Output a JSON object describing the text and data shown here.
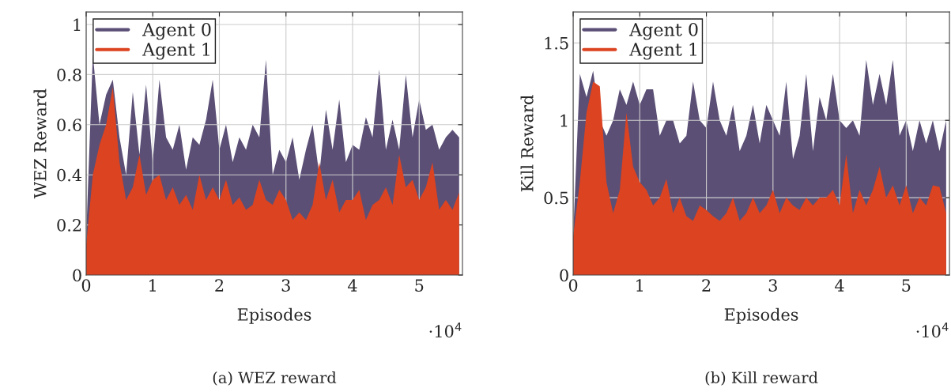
{
  "chart_data": [
    {
      "type": "area",
      "title": "(a) WEZ reward",
      "xlabel": "Episodes",
      "ylabel": "WEZ Reward",
      "annotations": [
        "·10$^{4}$"
      ],
      "x": [
        0,
        0.1,
        0.2,
        0.3,
        0.4,
        0.5,
        0.6,
        0.7,
        0.8,
        0.9,
        1.0,
        1.1,
        1.2,
        1.3,
        1.4,
        1.5,
        1.6,
        1.7,
        1.8,
        1.9,
        2.0,
        2.1,
        2.2,
        2.3,
        2.4,
        2.5,
        2.6,
        2.7,
        2.8,
        2.9,
        3.0,
        3.1,
        3.2,
        3.3,
        3.4,
        3.5,
        3.6,
        3.7,
        3.8,
        3.9,
        4.0,
        4.1,
        4.2,
        4.3,
        4.4,
        4.5,
        4.6,
        4.7,
        4.8,
        4.9,
        5.0,
        5.1,
        5.2,
        5.3,
        5.4,
        5.5,
        5.6
      ],
      "xlim": [
        0,
        5.65
      ],
      "xticks": [
        0,
        1,
        2,
        3,
        4,
        5
      ],
      "ylim": [
        0,
        1.05
      ],
      "yticks": [
        0,
        0.2,
        0.4,
        0.6,
        0.8,
        1
      ],
      "grid": true,
      "legend": "top left",
      "series": [
        {
          "name": "Agent 0",
          "color": "#5b4f76",
          "values": [
            0.15,
            0.88,
            0.6,
            0.72,
            0.78,
            0.55,
            0.4,
            0.73,
            0.48,
            0.76,
            0.45,
            0.78,
            0.55,
            0.5,
            0.6,
            0.42,
            0.55,
            0.52,
            0.62,
            0.78,
            0.5,
            0.6,
            0.45,
            0.55,
            0.5,
            0.6,
            0.55,
            0.86,
            0.4,
            0.5,
            0.45,
            0.55,
            0.38,
            0.5,
            0.6,
            0.4,
            0.66,
            0.5,
            0.7,
            0.45,
            0.52,
            0.5,
            0.63,
            0.55,
            0.82,
            0.5,
            0.62,
            0.5,
            0.8,
            0.55,
            0.7,
            0.58,
            0.6,
            0.5,
            0.55,
            0.58,
            0.55
          ]
        },
        {
          "name": "Agent 1",
          "color": "#dc4321",
          "values": [
            0.12,
            0.4,
            0.52,
            0.6,
            0.75,
            0.45,
            0.3,
            0.35,
            0.48,
            0.32,
            0.38,
            0.4,
            0.3,
            0.35,
            0.28,
            0.32,
            0.26,
            0.4,
            0.3,
            0.35,
            0.3,
            0.38,
            0.28,
            0.31,
            0.26,
            0.28,
            0.38,
            0.3,
            0.28,
            0.34,
            0.3,
            0.22,
            0.25,
            0.22,
            0.28,
            0.45,
            0.3,
            0.38,
            0.25,
            0.3,
            0.3,
            0.34,
            0.22,
            0.28,
            0.3,
            0.35,
            0.28,
            0.48,
            0.35,
            0.38,
            0.3,
            0.35,
            0.45,
            0.26,
            0.3,
            0.26,
            0.33
          ]
        }
      ]
    },
    {
      "type": "area",
      "title": "(b) Kill reward",
      "xlabel": "Episodes",
      "ylabel": "Kill Reward",
      "annotations": [
        "·10$^{4}$"
      ],
      "x": [
        0,
        0.1,
        0.2,
        0.3,
        0.4,
        0.5,
        0.6,
        0.7,
        0.8,
        0.9,
        1.0,
        1.1,
        1.2,
        1.3,
        1.4,
        1.5,
        1.6,
        1.7,
        1.8,
        1.9,
        2.0,
        2.1,
        2.2,
        2.3,
        2.4,
        2.5,
        2.6,
        2.7,
        2.8,
        2.9,
        3.0,
        3.1,
        3.2,
        3.3,
        3.4,
        3.5,
        3.6,
        3.7,
        3.8,
        3.9,
        4.0,
        4.1,
        4.2,
        4.3,
        4.4,
        4.5,
        4.6,
        4.7,
        4.8,
        4.9,
        5.0,
        5.1,
        5.2,
        5.3,
        5.4,
        5.5,
        5.6
      ],
      "xlim": [
        0,
        5.65
      ],
      "xticks": [
        0,
        1,
        2,
        3,
        4,
        5
      ],
      "ylim": [
        0,
        1.7
      ],
      "yticks": [
        0,
        0.5,
        1,
        1.5
      ],
      "grid": true,
      "legend": "top left",
      "series": [
        {
          "name": "Agent 0",
          "color": "#5b4f76",
          "values": [
            0.25,
            1.3,
            1.15,
            1.32,
            1.0,
            0.9,
            1.0,
            1.2,
            1.1,
            1.25,
            1.1,
            1.2,
            1.2,
            0.9,
            1.0,
            1.0,
            0.85,
            0.9,
            1.25,
            1.0,
            0.95,
            1.25,
            1.0,
            0.9,
            1.1,
            0.8,
            0.9,
            1.1,
            0.85,
            1.1,
            1.0,
            0.9,
            1.25,
            0.75,
            0.9,
            1.3,
            0.8,
            1.15,
            1.0,
            1.3,
            1.0,
            0.95,
            1.0,
            0.9,
            1.39,
            1.1,
            1.3,
            1.1,
            1.39,
            0.9,
            1.0,
            0.8,
            1.0,
            0.85,
            1.0,
            0.8,
            1.0
          ]
        },
        {
          "name": "Agent 1",
          "color": "#dc4321",
          "values": [
            0.25,
            0.6,
            1.05,
            1.25,
            1.22,
            0.6,
            0.4,
            0.55,
            1.05,
            0.7,
            0.6,
            0.55,
            0.45,
            0.5,
            0.62,
            0.4,
            0.5,
            0.38,
            0.35,
            0.45,
            0.42,
            0.38,
            0.35,
            0.4,
            0.5,
            0.35,
            0.4,
            0.5,
            0.4,
            0.45,
            0.55,
            0.4,
            0.5,
            0.45,
            0.42,
            0.5,
            0.45,
            0.5,
            0.5,
            0.55,
            0.45,
            0.78,
            0.4,
            0.55,
            0.45,
            0.55,
            0.7,
            0.5,
            0.58,
            0.45,
            0.58,
            0.4,
            0.5,
            0.45,
            0.58,
            0.57,
            0.4
          ]
        }
      ]
    }
  ]
}
